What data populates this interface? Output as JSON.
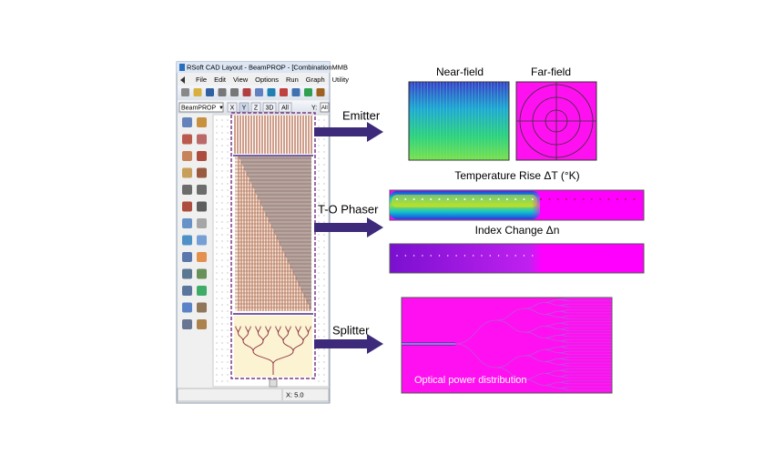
{
  "window": {
    "title": "RSoft CAD Layout - BeamPROP - [CombinationMMB",
    "menu": [
      "File",
      "Edit",
      "View",
      "Options",
      "Run",
      "Graph",
      "Utility"
    ],
    "program": "BeamPROP",
    "view_buttons": [
      "X",
      "Y",
      "Z",
      "3D",
      "All"
    ],
    "y_field": "Y:",
    "y_value": "All",
    "status": "X: 5.0"
  },
  "callouts": [
    "Emitter",
    "T-O Phaser",
    "Splitter"
  ],
  "panels": {
    "near_field": "Near-field",
    "far_field": "Far-field",
    "temperature": "Temperature Rise ΔT (°K)",
    "index": "Index Change Δn",
    "power": "Optical power distribution"
  }
}
